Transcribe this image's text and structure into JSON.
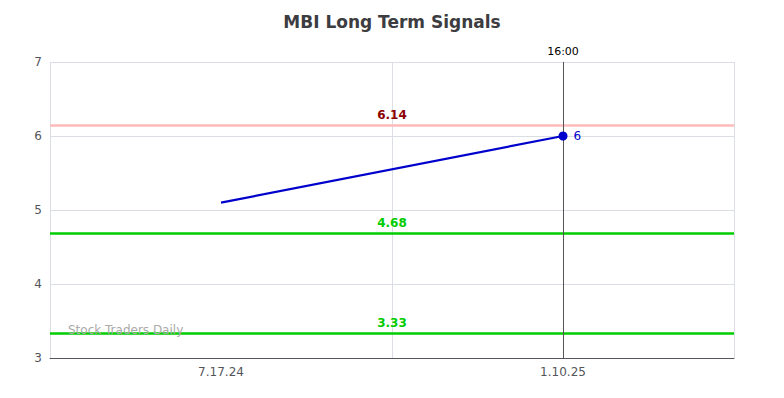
{
  "chart_data": {
    "type": "line",
    "title": "MBI Long Term Signals",
    "categories": [
      "7.17.24",
      "1.10.25"
    ],
    "values": [
      5.1,
      6.0
    ],
    "color": "#0000cc",
    "ylim": [
      3.0,
      7.0
    ],
    "yticks": [
      3,
      4,
      5,
      6,
      7
    ],
    "grid": true,
    "annotations": [
      {
        "type": "hline",
        "y": 6.14,
        "text": "6.14",
        "color": "#ffbbbb",
        "label_color": "#8b0000"
      },
      {
        "type": "hline",
        "y": 4.68,
        "text": "4.68",
        "color": "#00cc00",
        "label_color": "#00cc00"
      },
      {
        "type": "hline",
        "y": 3.33,
        "text": "3.33",
        "color": "#00cc00",
        "label_color": "#00cc00"
      },
      {
        "type": "vline",
        "x": "1.10.25",
        "text": "16:00",
        "color": "#555555"
      },
      {
        "type": "point",
        "x": "1.10.25",
        "y": 6.0,
        "text": "6",
        "color": "#0000cc"
      },
      {
        "type": "text",
        "text": "Stock Traders Daily",
        "color": "#aaaaaa"
      }
    ]
  }
}
